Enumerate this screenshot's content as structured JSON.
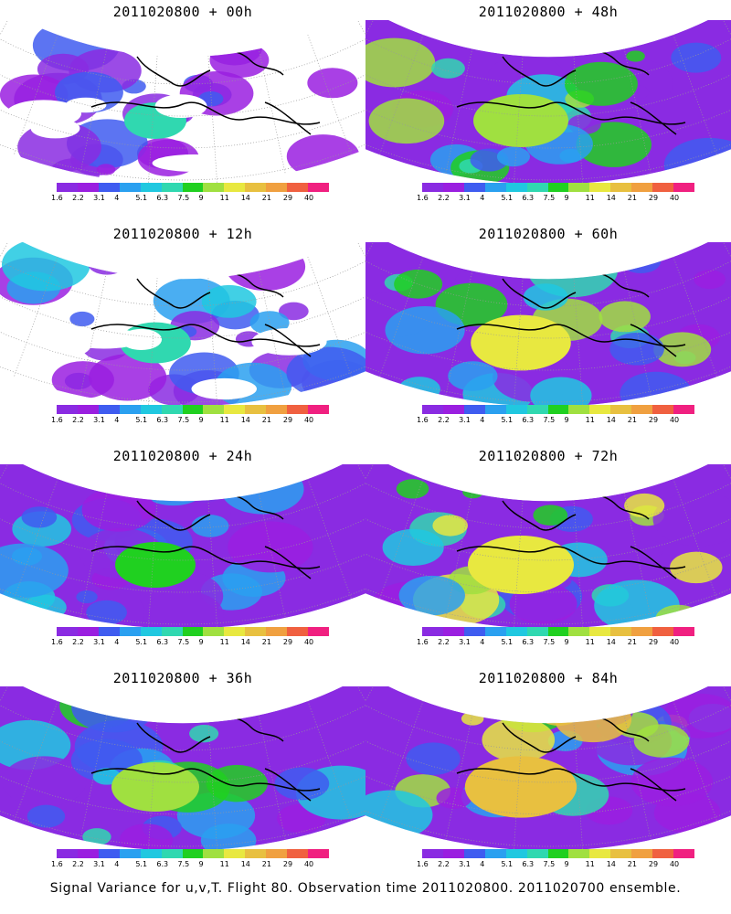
{
  "panels": [
    {
      "title": "2011020800 + 00h",
      "intensity": 0.1
    },
    {
      "title": "2011020800 + 48h",
      "intensity": 0.55
    },
    {
      "title": "2011020800 + 12h",
      "intensity": 0.22
    },
    {
      "title": "2011020800 + 60h",
      "intensity": 0.62
    },
    {
      "title": "2011020800 + 24h",
      "intensity": 0.35
    },
    {
      "title": "2011020800 + 72h",
      "intensity": 0.7
    },
    {
      "title": "2011020800 + 36h",
      "intensity": 0.45
    },
    {
      "title": "2011020800 + 84h",
      "intensity": 0.78
    }
  ],
  "colorbar": {
    "labels": [
      "1.6",
      "2.2",
      "3.1",
      "4",
      "5.1",
      "6.3",
      "7.5",
      "9",
      "11",
      "14",
      "21",
      "29",
      "40"
    ],
    "colors": [
      "#8a2be2",
      "#9a1fe0",
      "#3f5cf0",
      "#2aa0f0",
      "#20c8e0",
      "#30d8b0",
      "#20d020",
      "#a0e040",
      "#e8e840",
      "#e8c040",
      "#f0a040",
      "#f06040",
      "#f02080"
    ]
  },
  "footer": "Signal Variance for u,v,T. Flight 80. Observation time 2011020800. 2011020700 ensemble."
}
